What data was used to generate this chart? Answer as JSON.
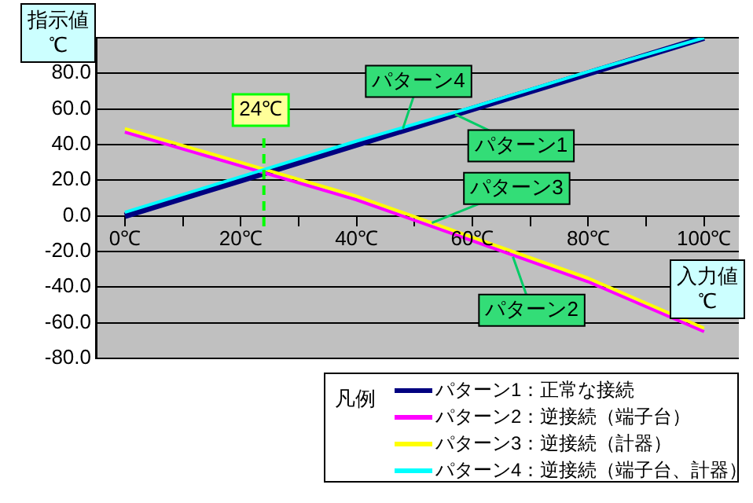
{
  "chart_data": {
    "type": "line",
    "ylabel": "指示値 ℃",
    "xlabel": "入力値 ℃",
    "legend_title": "凡例",
    "legend": "bottom right",
    "x": [
      0,
      20,
      40,
      60,
      80,
      100
    ],
    "series": [
      {
        "name": "パターン1：正常な接続",
        "color": "#000080",
        "values": [
          0,
          20,
          40,
          60,
          80,
          100
        ]
      },
      {
        "name": "パターン2：逆接続（端子台）",
        "color": "#ff00ff",
        "values": [
          47,
          28,
          9,
          -14,
          -37,
          -65
        ]
      },
      {
        "name": "パターン3：逆接続（計器）",
        "color": "#ffff00",
        "values": [
          49,
          30,
          11,
          -12,
          -35,
          -63
        ]
      },
      {
        "name": "パターン4：逆接続（端子台、計器）",
        "color": "#00ffff",
        "values": [
          2,
          22,
          42,
          61,
          81,
          100
        ]
      }
    ],
    "xlim": [
      -5,
      106
    ],
    "xticks": [
      {
        "value": 0,
        "label": "0℃"
      },
      {
        "value": 10,
        "label": null
      },
      {
        "value": 20,
        "label": "20℃"
      },
      {
        "value": 30,
        "label": null
      },
      {
        "value": 40,
        "label": "40℃"
      },
      {
        "value": 50,
        "label": null
      },
      {
        "value": 60,
        "label": "60℃"
      },
      {
        "value": 70,
        "label": null
      },
      {
        "value": 80,
        "label": "80℃"
      },
      {
        "value": 90,
        "label": null
      },
      {
        "value": 100,
        "label": "100℃"
      }
    ],
    "ylim": [
      -80,
      100
    ],
    "yticks": [
      {
        "value": -80,
        "label": "-80.0"
      },
      {
        "value": -60,
        "label": "-60.0"
      },
      {
        "value": -40,
        "label": "-40.0"
      },
      {
        "value": -20,
        "label": "-20.0"
      },
      {
        "value": 0,
        "label": "0.0"
      },
      {
        "value": 20,
        "label": "20.0"
      },
      {
        "value": 40,
        "label": "40.0"
      },
      {
        "value": 60,
        "label": "60.0"
      },
      {
        "value": 80,
        "label": "80.0"
      },
      {
        "value": 100,
        "label": null
      }
    ],
    "grid": "y",
    "marker": "none",
    "line_style": "solid",
    "ref_lines": [
      {
        "axis": "x",
        "value": 24,
        "label": "24℃",
        "color": "#00ff00",
        "line_style": "dashed"
      }
    ],
    "annotations": [
      {
        "text": "パターン4",
        "x": 48,
        "y": 49
      },
      {
        "text": "パターン1",
        "x": 57,
        "y": 57
      },
      {
        "text": "パターン3",
        "x": 53,
        "y": -4
      },
      {
        "text": "パターン2",
        "x": 67,
        "y": -23
      }
    ]
  }
}
